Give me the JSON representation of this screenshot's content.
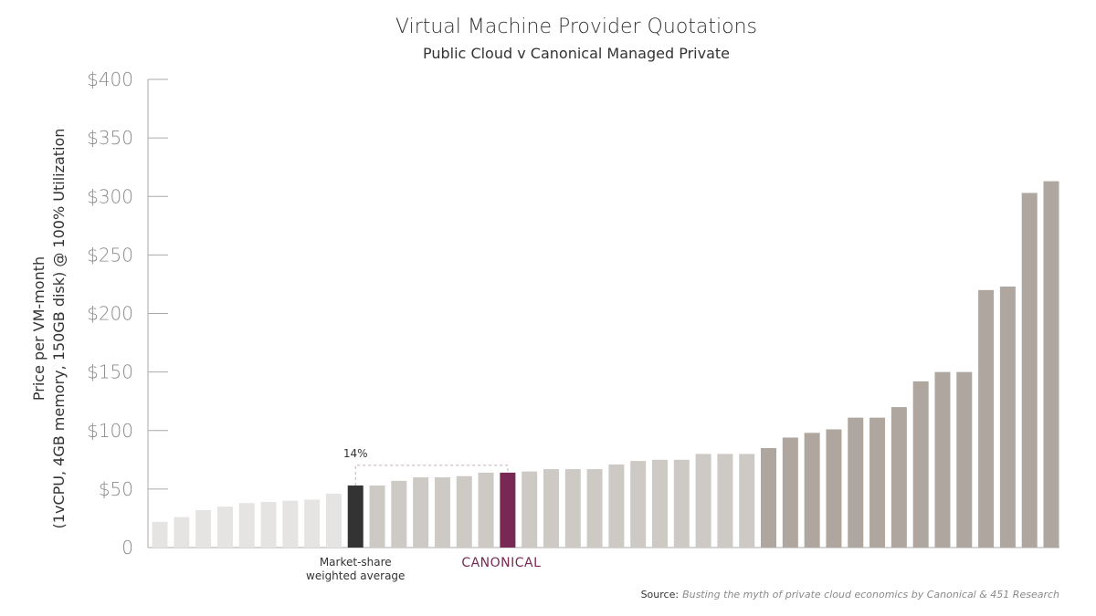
{
  "chart_data": {
    "type": "bar",
    "title": "Virtual Machine Provider Quotations",
    "subtitle": "Public Cloud v Canonical Managed Private",
    "ylabel_line1": "Price per VM-month",
    "ylabel_line2": "(1vCPU, 4GB memory, 150GB disk) @ 100% Utilization",
    "xlabel": "",
    "ylim": [
      0,
      400
    ],
    "yticks": [
      {
        "value": 0,
        "label": "0"
      },
      {
        "value": 50,
        "label": "$50"
      },
      {
        "value": 100,
        "label": "$100"
      },
      {
        "value": 150,
        "label": "$150"
      },
      {
        "value": 200,
        "label": "$200"
      },
      {
        "value": 250,
        "label": "$250"
      },
      {
        "value": 300,
        "label": "$300"
      },
      {
        "value": 350,
        "label": "$350"
      },
      {
        "value": 400,
        "label": "$400"
      }
    ],
    "grid": false,
    "values": [
      22,
      26,
      32,
      35,
      38,
      39,
      40,
      41,
      46,
      53,
      53,
      57,
      60,
      60,
      61,
      64,
      64,
      65,
      67,
      67,
      67,
      71,
      74,
      75,
      75,
      80,
      80,
      80,
      85,
      94,
      98,
      101,
      111,
      111,
      120,
      142,
      150,
      150,
      220,
      223,
      303,
      313
    ],
    "highlight": {
      "average_index": 9,
      "canonical_index": 16
    },
    "annotations": {
      "average_label_line1": "Market-share",
      "average_label_line2": "weighted average",
      "canonical_label": "CANONICAL",
      "difference_label": "14%"
    }
  },
  "source": {
    "prefix": "Source:",
    "text": "Busting the myth of private cloud economics by Canonical & 451 Research"
  },
  "colors": {
    "light_bar": "#e6e4e3",
    "mid_bar": "#cdcac5",
    "dark_bar": "#aea69f",
    "average_bar": "#333333",
    "canonical_bar": "#772953",
    "axis": "#aaaaaa",
    "dashed": "#c9a9bd"
  }
}
